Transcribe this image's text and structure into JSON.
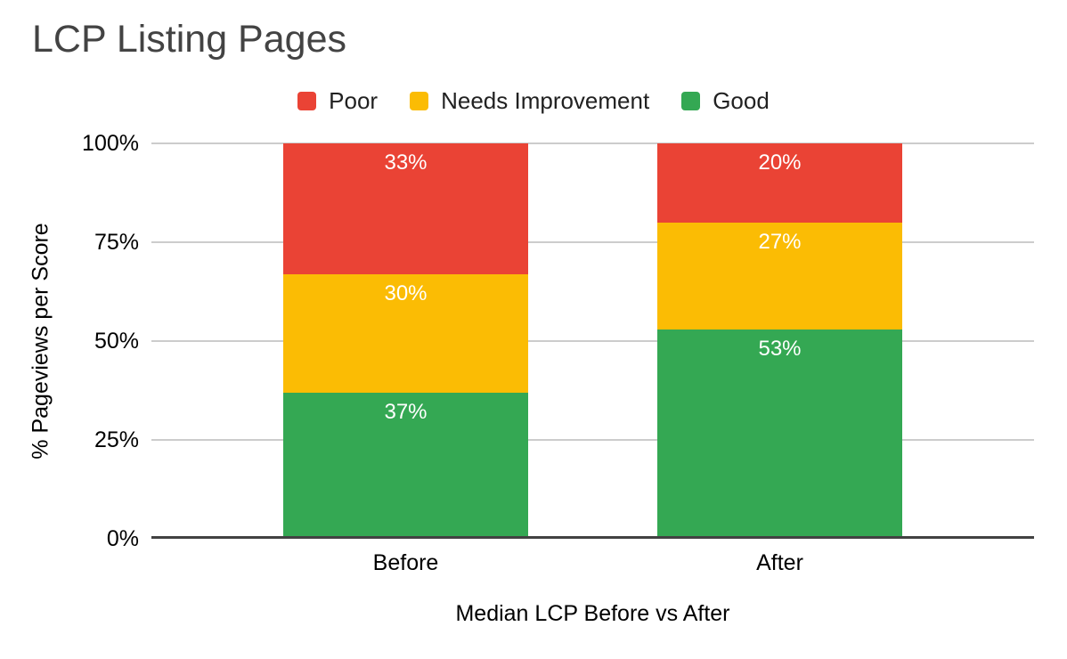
{
  "title": "LCP Listing Pages",
  "chart_data": {
    "type": "bar",
    "stacked": true,
    "stack_mode": "100%",
    "title": "LCP Listing Pages",
    "categories": [
      "Before",
      "After"
    ],
    "series": [
      {
        "name": "Poor",
        "color": "#ea4335",
        "values": [
          33,
          20
        ]
      },
      {
        "name": "Needs Improvement",
        "color": "#fbbc04",
        "values": [
          30,
          27
        ]
      },
      {
        "name": "Good",
        "color": "#34a853",
        "values": [
          37,
          53
        ]
      }
    ],
    "data_labels": [
      [
        "33%",
        "20%"
      ],
      [
        "30%",
        "27%"
      ],
      [
        "37%",
        "53%"
      ]
    ],
    "xlabel": "Median LCP Before vs After",
    "ylabel": "% Pageviews per Score",
    "yticks": [
      "0%",
      "25%",
      "50%",
      "75%",
      "100%"
    ],
    "ylim": [
      0,
      100
    ],
    "legend_position": "top",
    "grid": true,
    "value_suffix": "%"
  },
  "colors": {
    "title_text": "#434343",
    "axis_text": "#000000",
    "legend_text": "#212121",
    "gridline": "#cccccc",
    "axis_line": "#424242",
    "data_label_text": "#ffffff",
    "background": "#ffffff"
  }
}
